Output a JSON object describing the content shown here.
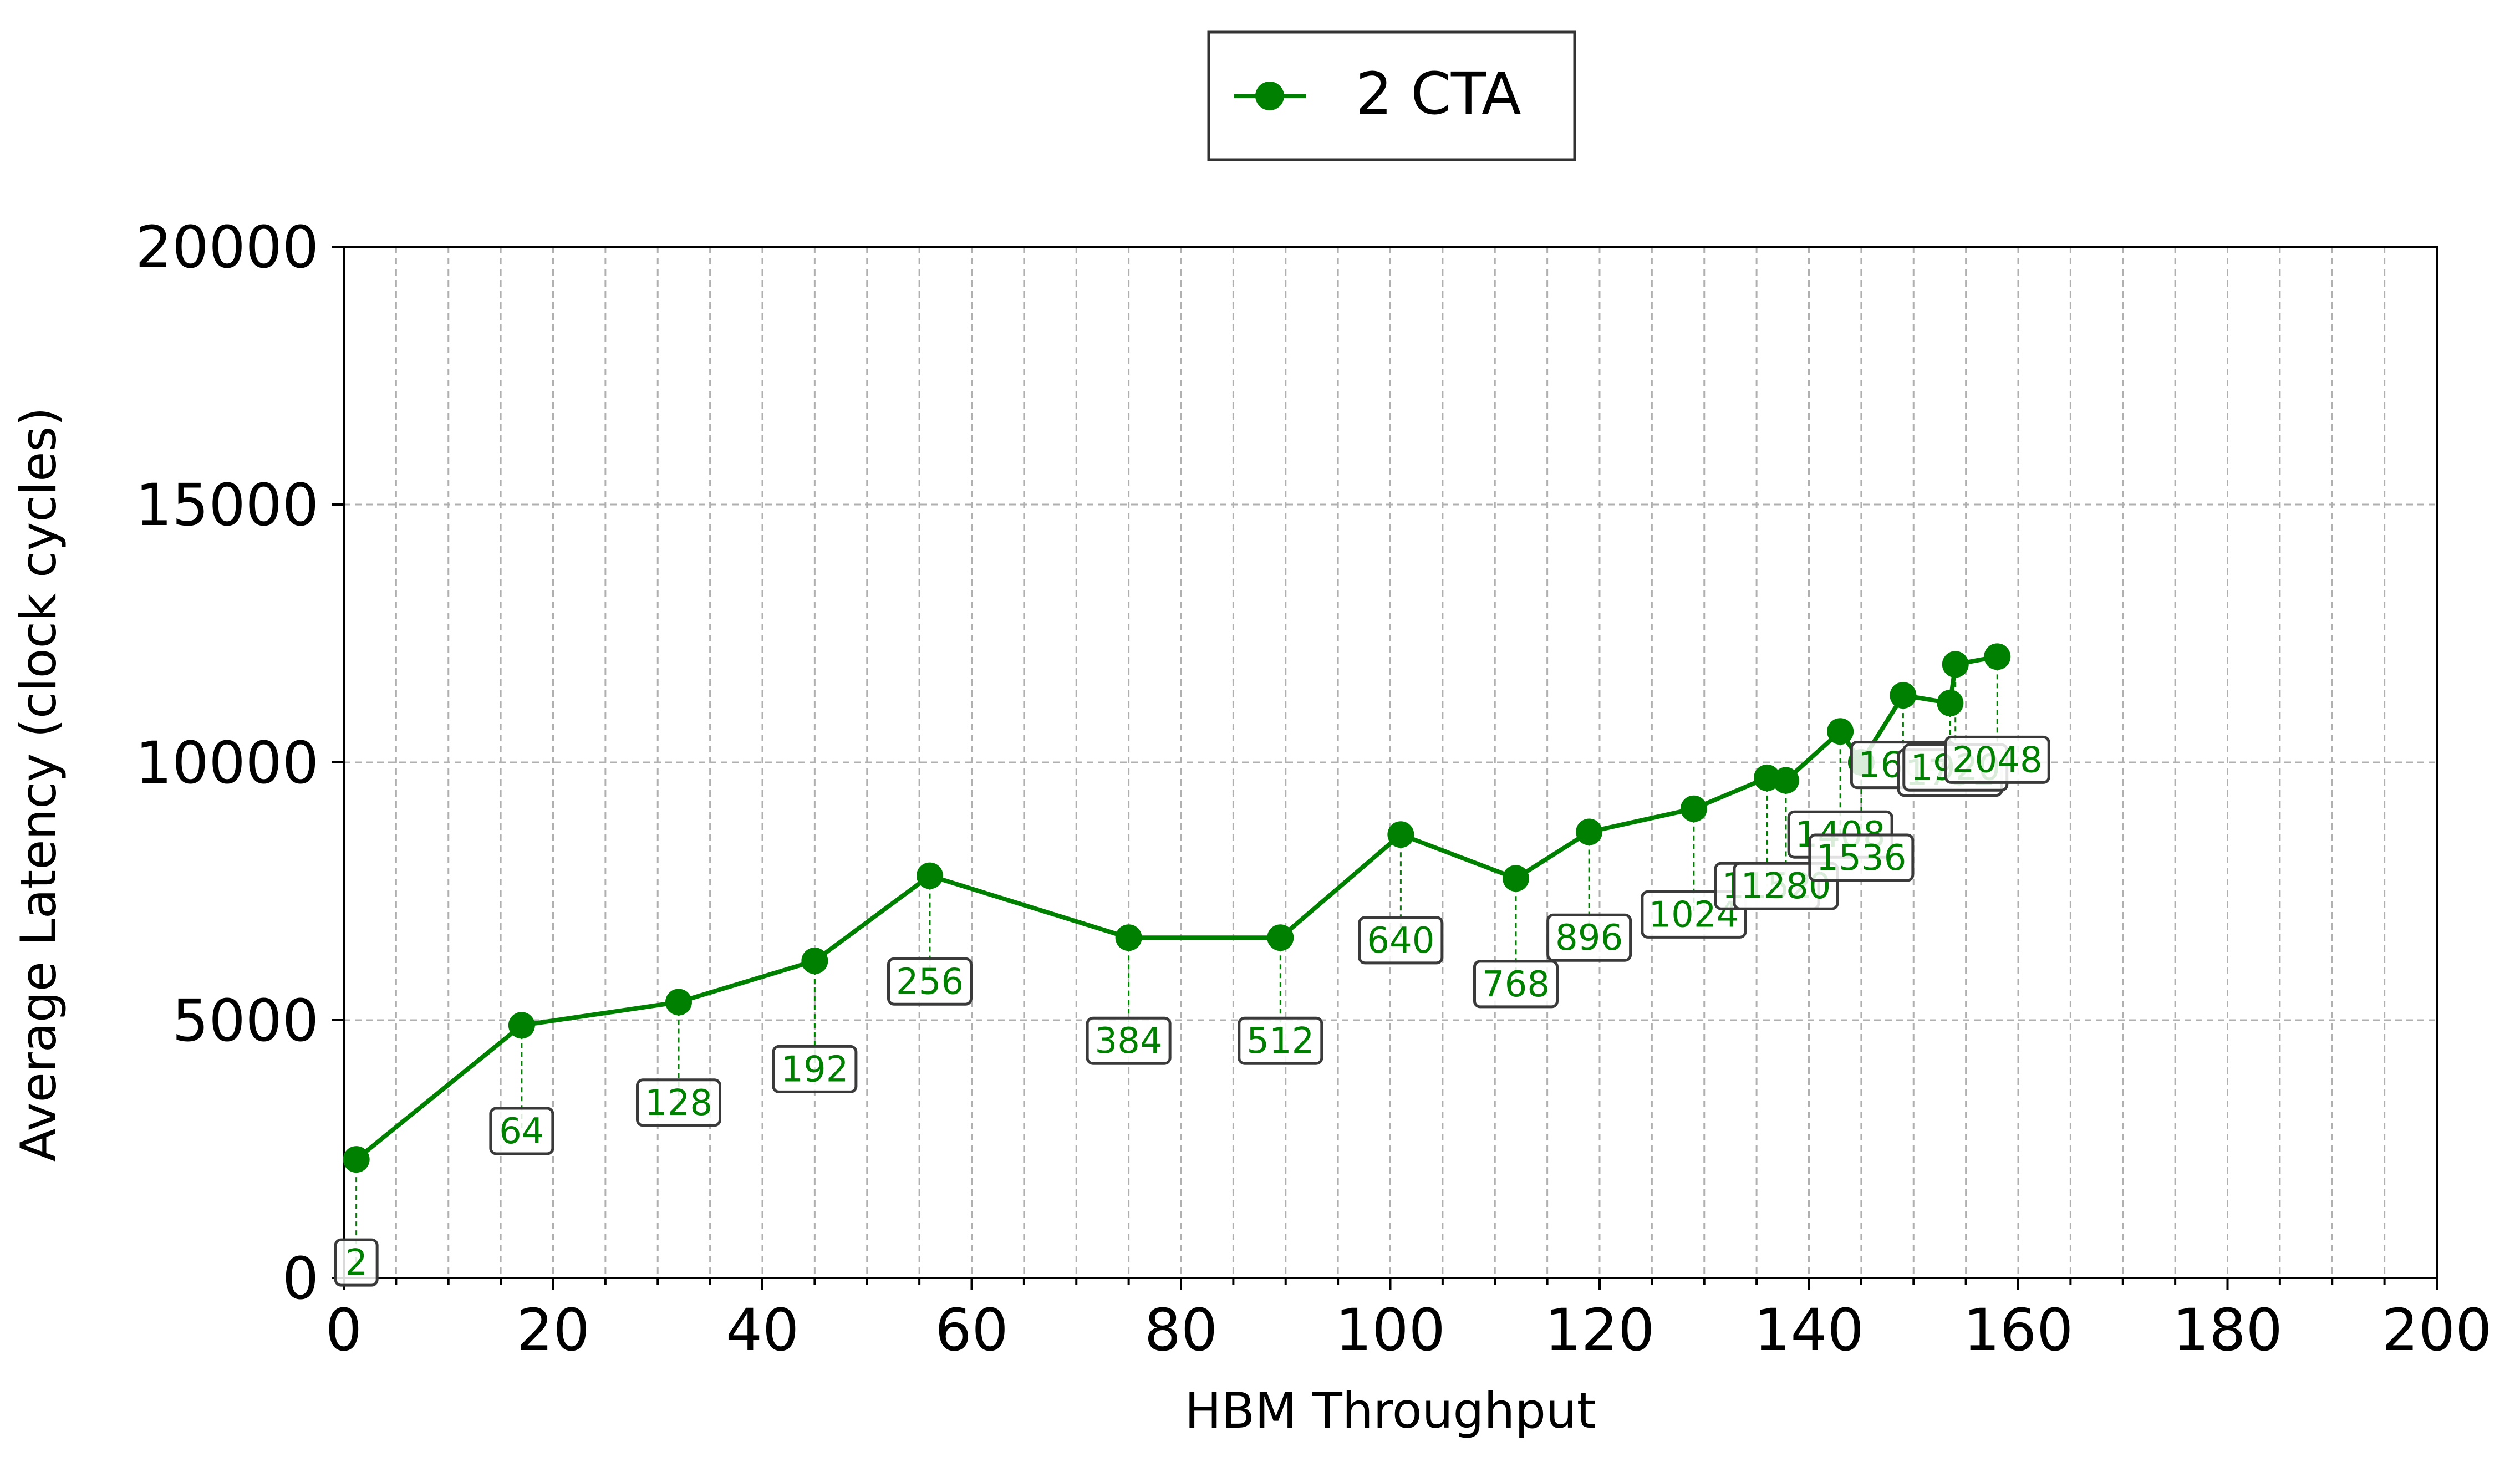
{
  "chart_data": {
    "type": "line",
    "title": "",
    "xlabel": "HBM Throughput",
    "ylabel": "Average Latency (clock cycles)",
    "xlim": [
      0,
      200
    ],
    "ylim": [
      0,
      20000
    ],
    "x_ticks": [
      0,
      20,
      40,
      60,
      80,
      100,
      120,
      140,
      160,
      180,
      200
    ],
    "y_ticks": [
      0,
      5000,
      10000,
      15000,
      20000
    ],
    "x_minor_step": 5,
    "grid": true,
    "legend_position": "top-center",
    "series": [
      {
        "name": "2 CTA",
        "color": "#008000",
        "x": [
          1.2,
          17,
          32,
          45,
          56,
          75,
          89.5,
          101,
          112,
          119,
          129,
          136,
          137.8,
          143,
          145,
          149,
          153.5,
          154,
          158
        ],
        "y": [
          2300,
          4900,
          5350,
          6150,
          7800,
          6600,
          6600,
          8600,
          7750,
          8650,
          9100,
          9700,
          9650,
          10600,
          10000,
          11300,
          11150,
          11900,
          12050
        ],
        "point_labels": [
          "2",
          "64",
          "128",
          "192",
          "256",
          "384",
          "512",
          "640",
          "768",
          "896",
          "1024",
          "1152",
          "1280",
          "1408",
          "1536",
          "1664",
          "1792",
          "1920",
          "2048"
        ],
        "label_y": [
          300,
          2850,
          3400,
          4050,
          5750,
          4600,
          4600,
          6550,
          5700,
          6600,
          7050,
          7600,
          7600,
          8600,
          8150,
          9950,
          9800,
          9900,
          10050
        ]
      }
    ]
  }
}
